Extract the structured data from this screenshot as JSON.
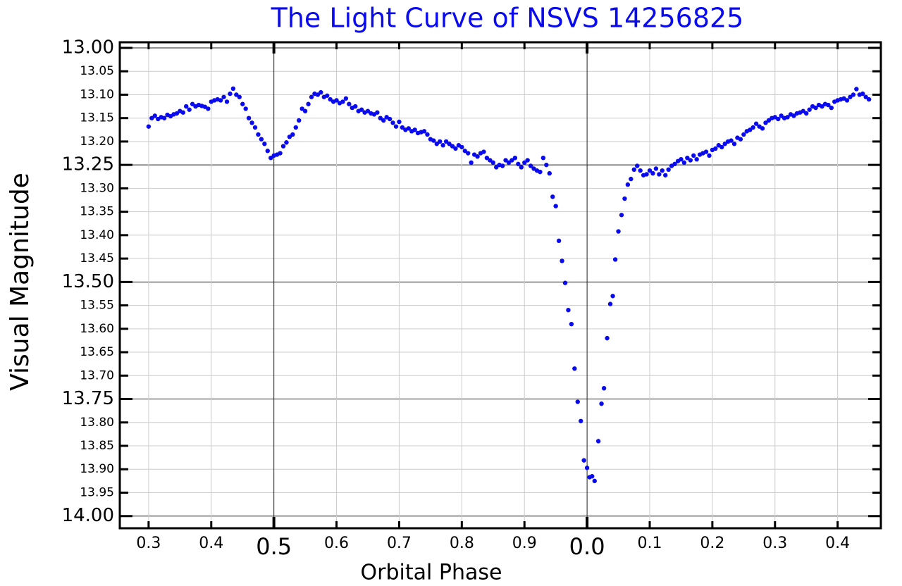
{
  "chart_data": {
    "type": "scatter",
    "title": "The Light Curve of NSVS 14256825",
    "xlabel": "Orbital Phase",
    "ylabel": "Visual Magnitude",
    "color": "#0a0aee",
    "grid": true,
    "xlim": [
      0.254,
      1.469
    ],
    "ylim": [
      14.026,
      12.988
    ],
    "xticks": [
      0.3,
      0.4,
      0.6,
      0.7,
      0.8,
      0.9,
      {
        "value": 1.1,
        "label": "0.1"
      },
      {
        "value": 1.2,
        "label": "0.2"
      },
      {
        "value": 1.3,
        "label": "0.3"
      },
      {
        "value": 1.4,
        "label": "0.4"
      }
    ],
    "xticks_major": [
      0.5,
      {
        "value": 1.0,
        "label": "0.0"
      }
    ],
    "yticks": [
      13.05,
      {
        "value": 13.1,
        "label": "13.10"
      },
      13.15,
      {
        "value": 13.2,
        "label": "13.20"
      },
      {
        "value": 13.3,
        "label": "13.30"
      },
      13.35,
      {
        "value": 13.4,
        "label": "13.40"
      },
      13.45,
      13.55,
      {
        "value": 13.6,
        "label": "13.60"
      },
      13.65,
      {
        "value": 13.7,
        "label": "13.70"
      },
      {
        "value": 13.8,
        "label": "13.80"
      },
      13.85,
      {
        "value": 13.9,
        "label": "13.90"
      },
      13.95
    ],
    "yticks_major": [
      {
        "value": 13,
        "label": "13.00"
      },
      13.25,
      {
        "value": 13.5,
        "label": "13.50"
      },
      13.75,
      {
        "value": 14,
        "label": "14.00"
      }
    ],
    "x": [
      0.3,
      0.305,
      0.31,
      0.315,
      0.32,
      0.325,
      0.33,
      0.335,
      0.34,
      0.345,
      0.35,
      0.355,
      0.36,
      0.365,
      0.37,
      0.375,
      0.38,
      0.385,
      0.39,
      0.395,
      0.4,
      0.405,
      0.41,
      0.415,
      0.42,
      0.425,
      0.43,
      0.435,
      0.44,
      0.445,
      0.45,
      0.455,
      0.46,
      0.465,
      0.47,
      0.475,
      0.48,
      0.485,
      0.49,
      0.495,
      0.5,
      0.505,
      0.51,
      0.515,
      0.52,
      0.525,
      0.53,
      0.535,
      0.54,
      0.545,
      0.55,
      0.555,
      0.56,
      0.565,
      0.57,
      0.575,
      0.58,
      0.585,
      0.59,
      0.595,
      0.6,
      0.605,
      0.61,
      0.615,
      0.62,
      0.625,
      0.63,
      0.635,
      0.64,
      0.645,
      0.65,
      0.655,
      0.66,
      0.665,
      0.67,
      0.675,
      0.68,
      0.685,
      0.69,
      0.695,
      0.7,
      0.705,
      0.71,
      0.715,
      0.72,
      0.725,
      0.73,
      0.735,
      0.74,
      0.745,
      0.75,
      0.755,
      0.76,
      0.765,
      0.77,
      0.775,
      0.78,
      0.785,
      0.79,
      0.795,
      0.8,
      0.805,
      0.81,
      0.815,
      0.82,
      0.825,
      0.83,
      0.835,
      0.84,
      0.845,
      0.85,
      0.855,
      0.86,
      0.865,
      0.87,
      0.875,
      0.88,
      0.885,
      0.89,
      0.895,
      0.9,
      0.905,
      0.91,
      0.915,
      0.92,
      0.925,
      0.93,
      0.935,
      0.94,
      0.945,
      0.95,
      0.955,
      0.96,
      0.965,
      0.97,
      0.975,
      0.98,
      0.985,
      0.99,
      0.995,
      1.0,
      1.004,
      1.008,
      1.012,
      1.018,
      1.023,
      1.027,
      1.032,
      1.037,
      1.041,
      1.045,
      1.05,
      1.055,
      1.06,
      1.065,
      1.07,
      1.075,
      1.08,
      1.085,
      1.09,
      1.095,
      1.1,
      1.105,
      1.11,
      1.115,
      1.12,
      1.125,
      1.13,
      1.135,
      1.14,
      1.145,
      1.15,
      1.155,
      1.16,
      1.165,
      1.17,
      1.175,
      1.18,
      1.185,
      1.19,
      1.195,
      1.2,
      1.205,
      1.21,
      1.215,
      1.22,
      1.225,
      1.23,
      1.235,
      1.24,
      1.245,
      1.25,
      1.255,
      1.26,
      1.265,
      1.27,
      1.275,
      1.28,
      1.285,
      1.29,
      1.295,
      1.3,
      1.305,
      1.31,
      1.315,
      1.32,
      1.325,
      1.33,
      1.335,
      1.34,
      1.345,
      1.35,
      1.355,
      1.36,
      1.365,
      1.37,
      1.375,
      1.38,
      1.385,
      1.39,
      1.395,
      1.4,
      1.405,
      1.41,
      1.415,
      1.42,
      1.425,
      1.43,
      1.435,
      1.44,
      1.445,
      1.45
    ],
    "values": [
      13.168,
      13.15,
      13.145,
      13.152,
      13.148,
      13.15,
      13.143,
      13.146,
      13.142,
      13.14,
      13.135,
      13.138,
      13.125,
      13.132,
      13.12,
      13.125,
      13.122,
      13.124,
      13.126,
      13.13,
      13.115,
      13.112,
      13.11,
      13.112,
      13.105,
      13.115,
      13.098,
      13.087,
      13.1,
      13.105,
      13.12,
      13.13,
      13.15,
      13.16,
      13.17,
      13.185,
      13.195,
      13.205,
      13.22,
      13.235,
      13.23,
      13.228,
      13.225,
      13.21,
      13.202,
      13.19,
      13.185,
      13.17,
      13.155,
      13.13,
      13.135,
      13.12,
      13.105,
      13.098,
      13.1,
      13.095,
      13.105,
      13.102,
      13.11,
      13.115,
      13.112,
      13.118,
      13.115,
      13.108,
      13.12,
      13.128,
      13.125,
      13.135,
      13.132,
      13.138,
      13.135,
      13.14,
      13.142,
      13.138,
      13.15,
      13.155,
      13.148,
      13.152,
      13.16,
      13.168,
      13.158,
      13.17,
      13.175,
      13.172,
      13.178,
      13.175,
      13.182,
      13.18,
      13.178,
      13.185,
      13.195,
      13.198,
      13.205,
      13.2,
      13.208,
      13.2,
      13.205,
      13.21,
      13.215,
      13.208,
      13.212,
      13.22,
      13.225,
      13.245,
      13.228,
      13.232,
      13.225,
      13.222,
      13.235,
      13.24,
      13.245,
      13.255,
      13.25,
      13.252,
      13.24,
      13.245,
      13.24,
      13.235,
      13.248,
      13.255,
      13.245,
      13.24,
      13.252,
      13.258,
      13.262,
      13.265,
      13.235,
      13.25,
      13.268,
      13.318,
      13.338,
      13.412,
      13.455,
      13.502,
      13.56,
      13.59,
      13.685,
      13.756,
      13.797,
      13.881,
      13.897,
      13.917,
      13.915,
      13.925,
      13.84,
      13.76,
      13.727,
      13.62,
      13.547,
      13.53,
      13.452,
      13.392,
      13.357,
      13.322,
      13.292,
      13.28,
      13.26,
      13.252,
      13.262,
      13.272,
      13.27,
      13.262,
      13.268,
      13.258,
      13.27,
      13.262,
      13.272,
      13.26,
      13.252,
      13.248,
      13.242,
      13.238,
      13.245,
      13.235,
      13.24,
      13.23,
      13.238,
      13.228,
      13.225,
      13.222,
      13.23,
      13.218,
      13.215,
      13.208,
      13.212,
      13.205,
      13.2,
      13.198,
      13.205,
      13.192,
      13.195,
      13.185,
      13.178,
      13.175,
      13.17,
      13.162,
      13.168,
      13.172,
      13.16,
      13.155,
      13.15,
      13.148,
      13.152,
      13.145,
      13.15,
      13.148,
      13.142,
      13.145,
      13.14,
      13.138,
      13.135,
      13.14,
      13.132,
      13.125,
      13.128,
      13.122,
      13.125,
      13.12,
      13.122,
      13.128,
      13.115,
      13.112,
      13.11,
      13.108,
      13.112,
      13.105,
      13.1,
      13.088,
      13.1,
      13.098,
      13.105,
      13.11
    ]
  }
}
